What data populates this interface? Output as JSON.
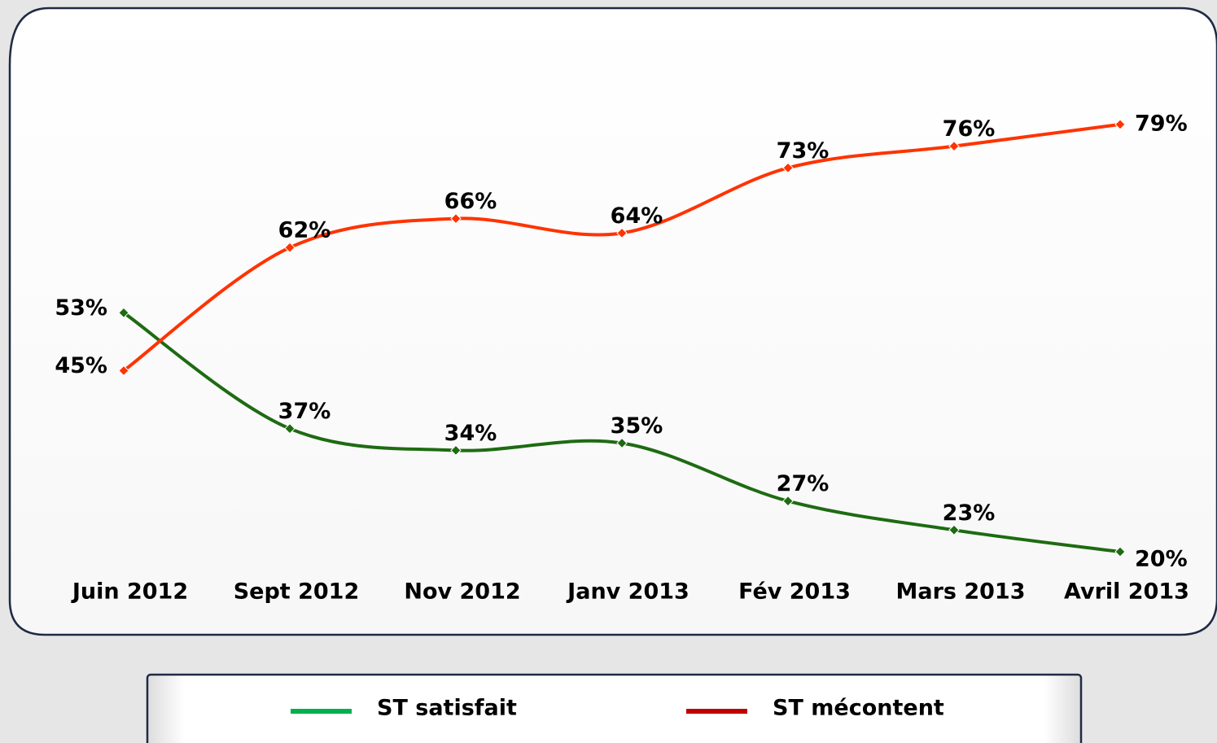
{
  "chart_data": {
    "type": "line",
    "categories": [
      "Juin 2012",
      "Sept 2012",
      "Nov 2012",
      "Janv 2013",
      "Fév 2013",
      "Mars 2013",
      "Avril 2013"
    ],
    "series": [
      {
        "name": "ST satisfait",
        "color": "#1e6b12",
        "legend_color": "#00b050",
        "values": [
          53,
          37,
          34,
          35,
          27,
          23,
          20
        ],
        "value_labels": [
          "53%",
          "37%",
          "34%",
          "35%",
          "27%",
          "23%",
          "20%"
        ]
      },
      {
        "name": "ST mécontent",
        "color": "#ff3300",
        "legend_color": "#c00000",
        "values": [
          45,
          62,
          66,
          64,
          73,
          76,
          79
        ],
        "value_labels": [
          "45%",
          "62%",
          "66%",
          "64%",
          "73%",
          "76%",
          "79%"
        ]
      }
    ],
    "legend": "bottom"
  }
}
